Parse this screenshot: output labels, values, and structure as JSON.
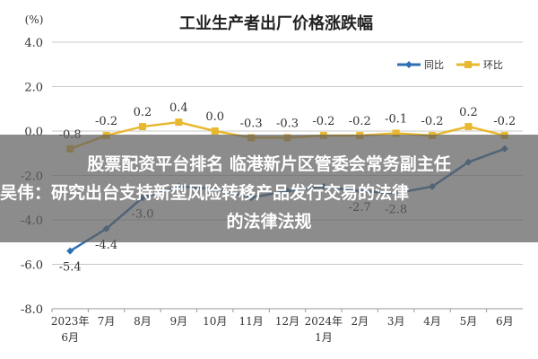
{
  "chart_data": {
    "type": "line",
    "title": "工业生产者出厂价格涨跌幅",
    "yunit": "(%)",
    "yticks": [
      "4.0",
      "2.0",
      "0.0",
      "-2.0",
      "-4.0",
      "-6.0",
      "-8.0"
    ],
    "ylim": [
      -8,
      4
    ],
    "categories": [
      {
        "label": "2023年",
        "sub": "6月"
      },
      {
        "label": "7月",
        "sub": ""
      },
      {
        "label": "8月",
        "sub": ""
      },
      {
        "label": "9月",
        "sub": ""
      },
      {
        "label": "10月",
        "sub": ""
      },
      {
        "label": "11月",
        "sub": ""
      },
      {
        "label": "12月",
        "sub": ""
      },
      {
        "label": "2024年",
        "sub": "1月"
      },
      {
        "label": "2月",
        "sub": ""
      },
      {
        "label": "3月",
        "sub": ""
      },
      {
        "label": "4月",
        "sub": ""
      },
      {
        "label": "5月",
        "sub": ""
      },
      {
        "label": "6月",
        "sub": ""
      }
    ],
    "grid": true,
    "legend_position": "top-right",
    "series": [
      {
        "name": "同比",
        "color": "#2e6fb3",
        "values": [
          -5.4,
          -4.4,
          -3.0,
          -2.5,
          -2.6,
          -3.0,
          -2.7,
          -2.5,
          -2.7,
          -2.8,
          -2.5,
          -1.4,
          -0.8
        ],
        "labels": [
          "-5.4",
          "-4.4",
          "-3.0",
          "",
          "",
          "",
          "",
          "",
          "-2.7",
          "-2.8",
          "",
          "",
          ""
        ]
      },
      {
        "name": "环比",
        "color": "#e8b830",
        "values": [
          -0.8,
          -0.2,
          0.2,
          0.4,
          0.0,
          -0.3,
          -0.3,
          -0.2,
          -0.2,
          -0.1,
          -0.2,
          0.2,
          -0.2
        ],
        "labels": [
          "-0.8",
          "-0.2",
          "0.2",
          "0.4",
          "0.0",
          "-0.3",
          "-0.3",
          "-0.2",
          "-0.2",
          "-0.1",
          "-0.2",
          "0.2",
          "-0.2"
        ]
      }
    ]
  },
  "overlay": {
    "line1": "股票配资平台排名 临港新片区管委会常务副主任",
    "line2": "吴伟：研究出台支持新型风险转移产品发行交易的法律",
    "line3": "的法律法规"
  }
}
